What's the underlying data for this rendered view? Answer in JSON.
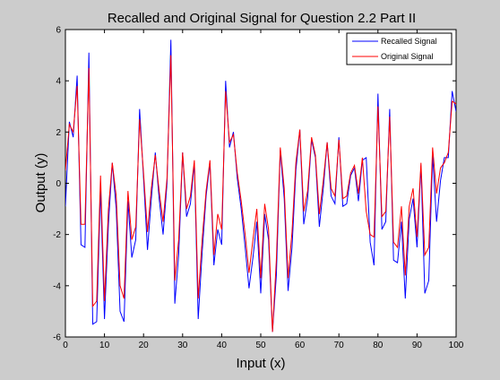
{
  "chart_data": {
    "type": "line",
    "title": "Recalled and Original Signal for Question 2.2 Part II",
    "xlabel": "Input (x)",
    "ylabel": "Output (y)",
    "xlim": [
      0,
      100
    ],
    "ylim": [
      -6,
      6
    ],
    "xticks": [
      "0",
      "10",
      "20",
      "30",
      "40",
      "50",
      "60",
      "70",
      "80",
      "90",
      "100"
    ],
    "yticks": [
      "-6",
      "-4",
      "-2",
      "0",
      "2",
      "4",
      "6"
    ],
    "grid": false,
    "legend_position": "top-right",
    "x": [
      0,
      1,
      2,
      3,
      4,
      5,
      6,
      7,
      8,
      9,
      10,
      11,
      12,
      13,
      14,
      15,
      16,
      17,
      18,
      19,
      20,
      21,
      22,
      23,
      24,
      25,
      26,
      27,
      28,
      29,
      30,
      31,
      32,
      33,
      34,
      35,
      36,
      37,
      38,
      39,
      40,
      41,
      42,
      43,
      44,
      45,
      46,
      47,
      48,
      49,
      50,
      51,
      52,
      53,
      54,
      55,
      56,
      57,
      58,
      59,
      60,
      61,
      62,
      63,
      64,
      65,
      66,
      67,
      68,
      69,
      70,
      71,
      72,
      73,
      74,
      75,
      76,
      77,
      78,
      79,
      80,
      81,
      82,
      83,
      84,
      85,
      86,
      87,
      88,
      89,
      90,
      91,
      92,
      93,
      94,
      95,
      96,
      97,
      98,
      99,
      100
    ],
    "series": [
      {
        "name": "Recalled Signal",
        "color": "#0000ff",
        "values": [
          -0.9,
          2.4,
          1.8,
          4.2,
          -2.4,
          -2.5,
          5.1,
          -5.5,
          -5.4,
          -0.2,
          -5.3,
          -1.6,
          0.8,
          -1.0,
          -5.0,
          -5.4,
          -0.7,
          -2.9,
          -2.2,
          2.9,
          0.2,
          -2.6,
          -0.6,
          1.2,
          -0.6,
          -2.0,
          0.0,
          5.6,
          -4.7,
          -2.8,
          1.2,
          -1.3,
          -0.8,
          0.8,
          -5.3,
          -2.7,
          -0.5,
          0.8,
          -3.2,
          -1.8,
          -2.4,
          4.0,
          1.4,
          2.0,
          0.2,
          -1.0,
          -2.5,
          -4.1,
          -2.9,
          -1.5,
          -4.3,
          -1.2,
          -2.2,
          -5.8,
          -3.6,
          1.3,
          -0.6,
          -4.2,
          -2.5,
          0.5,
          2.1,
          -1.6,
          -0.6,
          1.7,
          1.0,
          -1.7,
          -0.2,
          1.6,
          -0.5,
          -0.8,
          1.8,
          -0.9,
          -0.8,
          0.3,
          0.6,
          -0.7,
          0.9,
          1.0,
          -2.3,
          -3.2,
          3.5,
          -1.8,
          -1.5,
          2.9,
          -3.0,
          -3.1,
          -1.5,
          -4.5,
          -1.4,
          -0.6,
          -2.5,
          0.7,
          -4.3,
          -3.8,
          1.1,
          -1.5,
          0.1,
          1.0,
          1.0,
          3.6,
          2.8
        ]
      },
      {
        "name": "Original Signal",
        "color": "#ff0000",
        "values": [
          0.5,
          2.3,
          2.0,
          3.8,
          -1.6,
          -1.6,
          4.5,
          -4.8,
          -4.6,
          0.3,
          -4.6,
          -1.0,
          0.8,
          -0.5,
          -4.0,
          -4.5,
          -0.3,
          -2.2,
          -1.7,
          2.5,
          0.4,
          -1.9,
          -0.2,
          1.1,
          -0.3,
          -1.5,
          0.2,
          5.0,
          -3.8,
          -2.2,
          1.2,
          -1.0,
          -0.5,
          0.9,
          -4.5,
          -2.2,
          -0.3,
          0.9,
          -2.8,
          -1.2,
          -1.8,
          3.6,
          1.6,
          1.9,
          0.4,
          -0.7,
          -2.0,
          -3.5,
          -2.2,
          -1.0,
          -3.7,
          -0.8,
          -1.8,
          -5.8,
          -3.0,
          1.4,
          -0.2,
          -3.7,
          -1.9,
          0.8,
          2.1,
          -1.1,
          -0.3,
          1.8,
          1.1,
          -1.2,
          0.1,
          1.6,
          -0.2,
          -0.5,
          1.7,
          -0.6,
          -0.5,
          0.4,
          0.7,
          -0.4,
          1.0,
          -1.1,
          -2.0,
          -2.1,
          3.0,
          -1.3,
          -1.1,
          2.6,
          -2.3,
          -2.5,
          -0.9,
          -3.6,
          -0.9,
          -0.2,
          -2.1,
          0.8,
          -2.8,
          -2.5,
          1.4,
          -0.4,
          0.6,
          0.8,
          1.2,
          3.2,
          3.1
        ]
      }
    ]
  }
}
